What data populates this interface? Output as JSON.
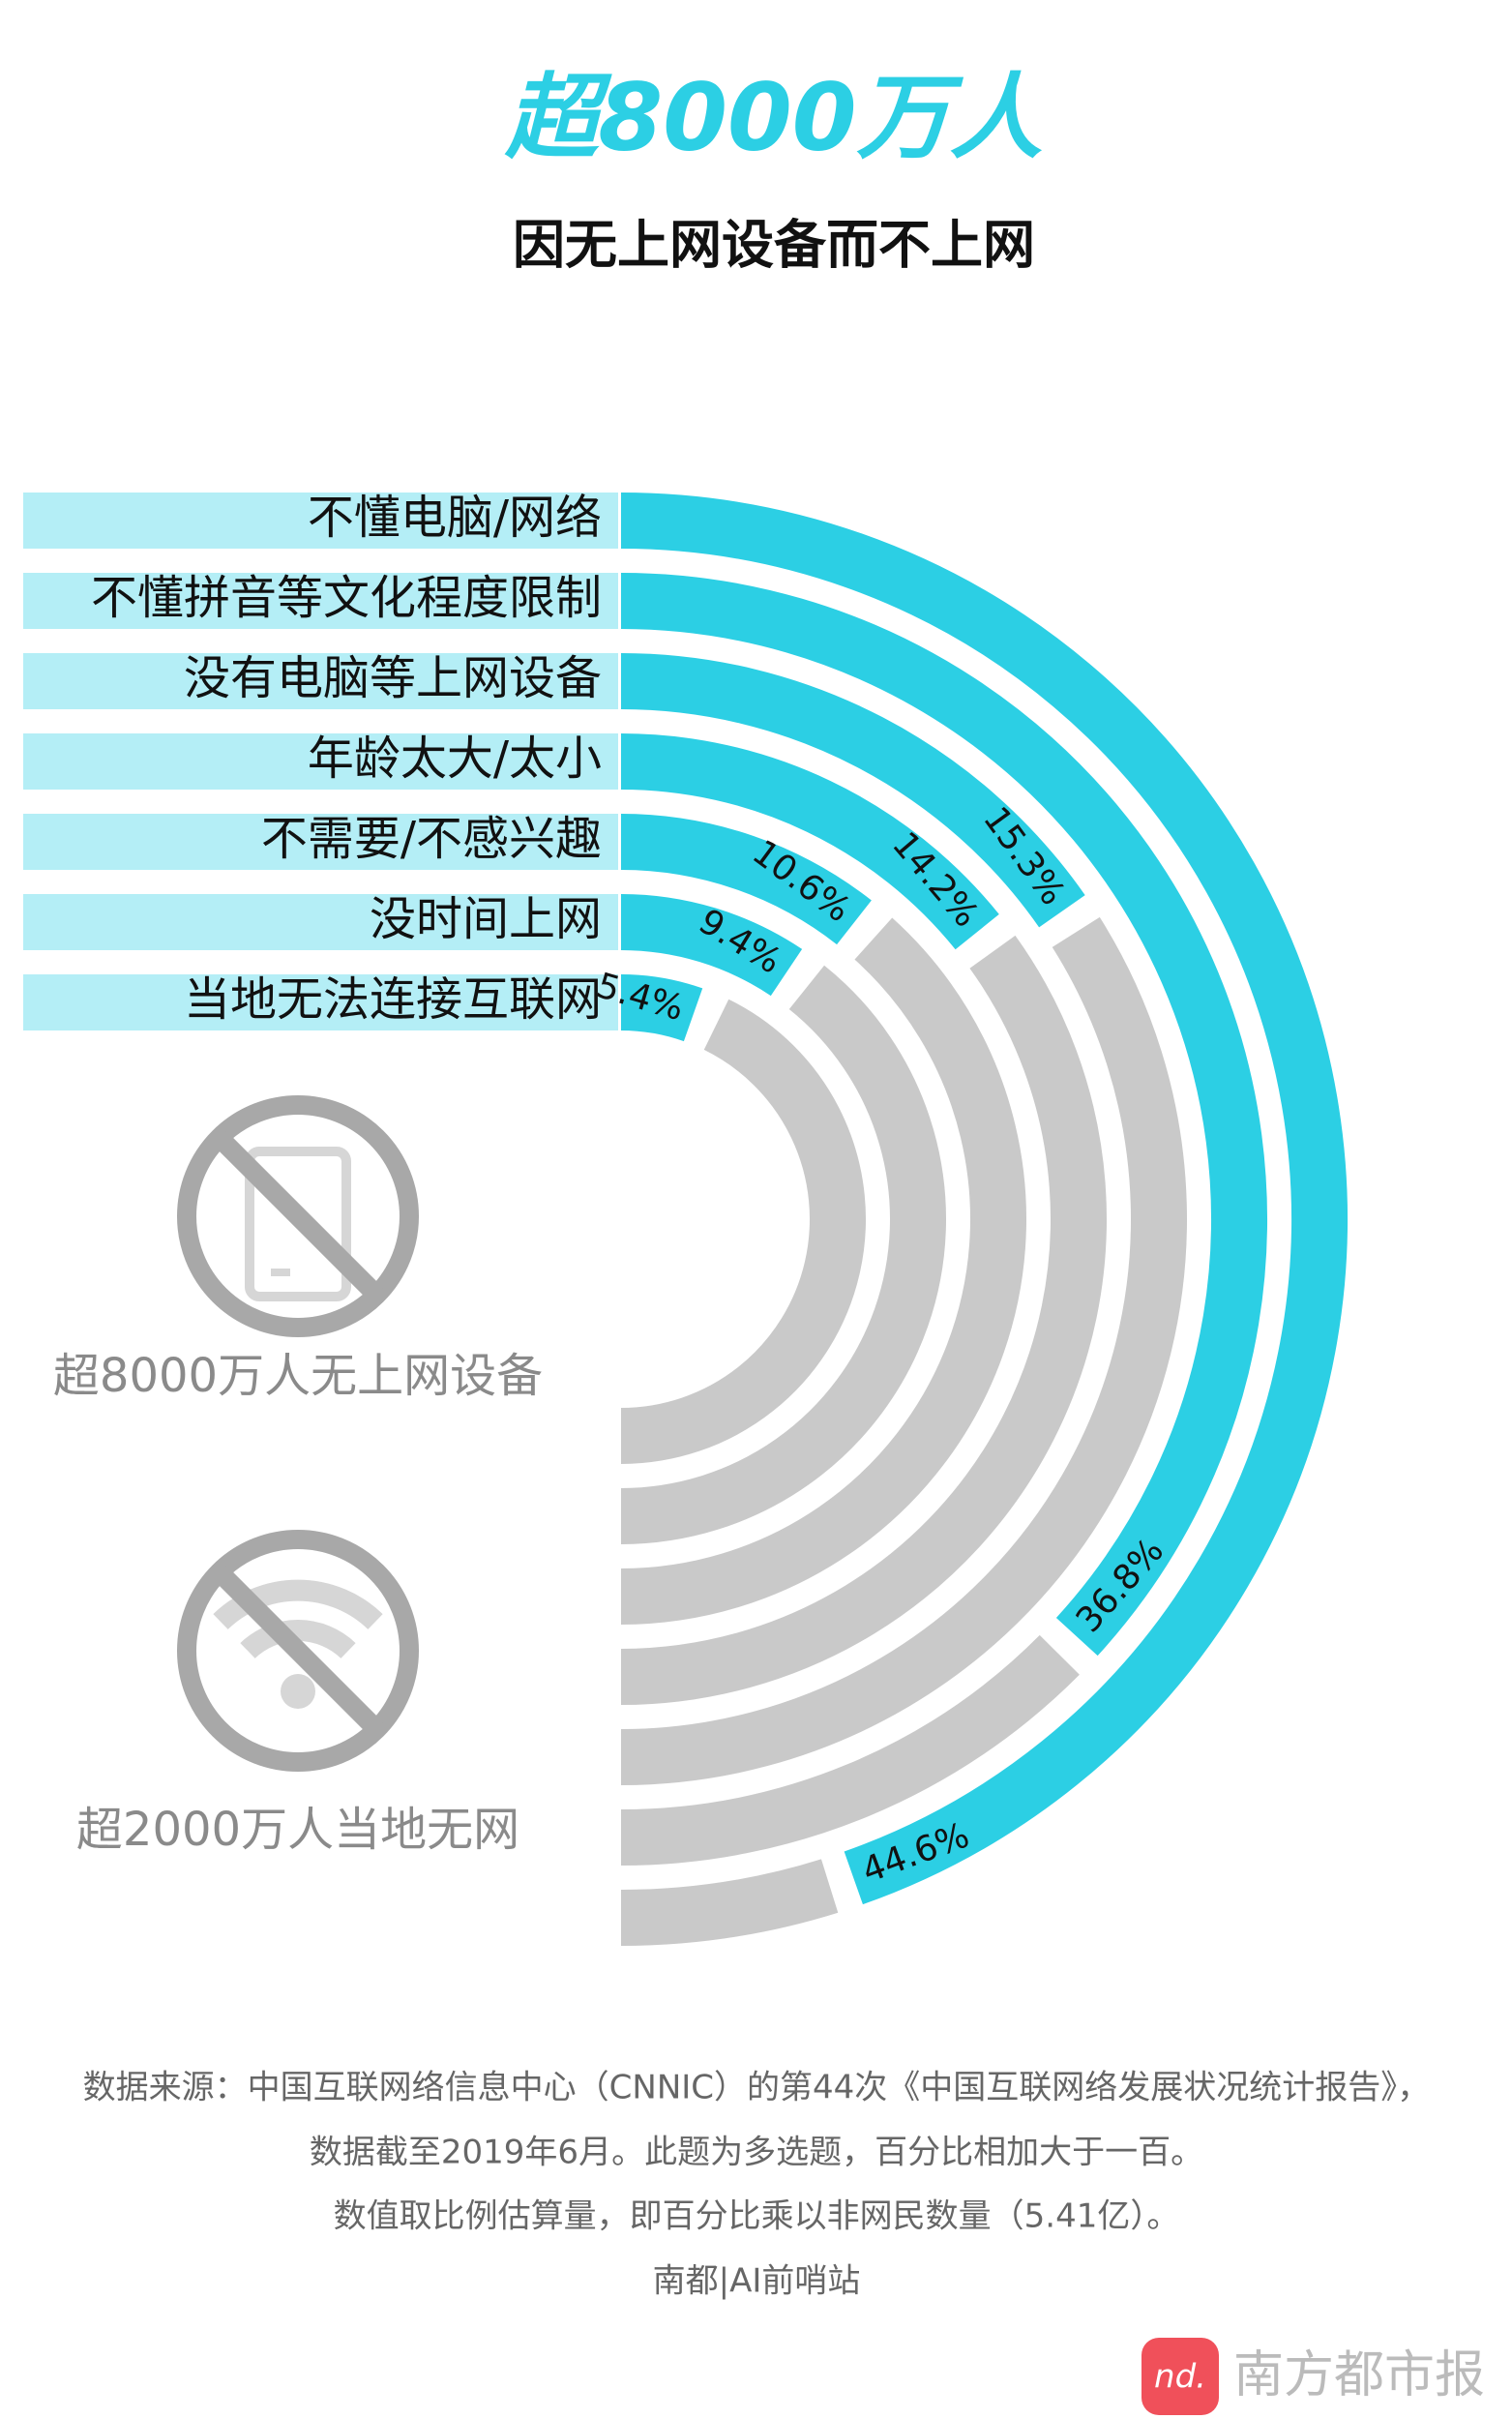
{
  "chart_data": {
    "type": "radial_bar",
    "title": "超8000万人",
    "subtitle": "因无上网设备而不上网",
    "categories": [
      "不懂电脑/网络",
      "不懂拼音等文化程度限制",
      "没有电脑等上网设备",
      "年龄太大/太小",
      "不需要/不感兴趣",
      "没时间上网",
      "当地无法连接互联网"
    ],
    "values": [
      44.6,
      36.8,
      15.3,
      14.2,
      10.6,
      9.4,
      5.4
    ],
    "value_labels": [
      "44.6%",
      "36.8%",
      "15.3%",
      "14.2%",
      "10.6%",
      "9.4%",
      "5.4%"
    ],
    "color": "#2ccfe4",
    "track_color": "#c9c9c9",
    "label_color": "#b4eef6",
    "vlim": [
      0,
      50
    ]
  },
  "annotations": [
    {
      "text": "超8000万人无上网设备"
    },
    {
      "text": "超2000万人当地无网"
    }
  ],
  "notes": [
    "数据来源：中国互联网络信息中心（CNNIC）的第44次《中国互联网络发展状况统计报告》，",
    "数据截至2019年6月。此题为多选题，百分比相加大于一百。",
    "数值取比例估算量，即百分比乘以非网民数量（5.41亿）。"
  ],
  "credit": "南都|AI前哨站",
  "logo": "南方都市报"
}
